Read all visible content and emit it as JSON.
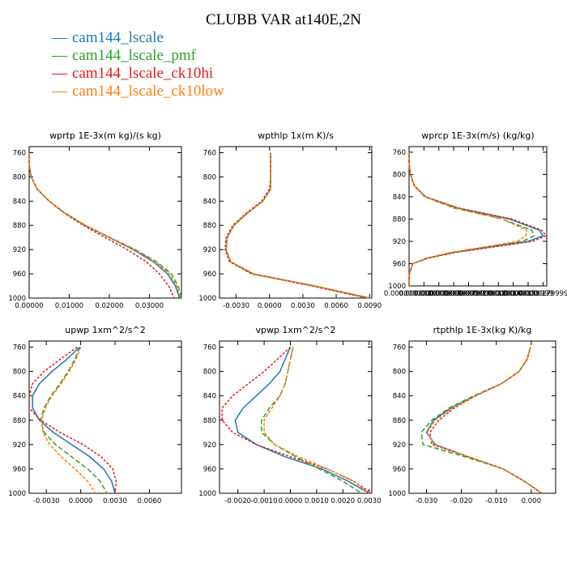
{
  "title": "CLUBB VAR at140E,2N",
  "legend": [
    {
      "label": "cam144_lscale",
      "color": "#1f77b4"
    },
    {
      "label": "cam144_lscale_pmf",
      "color": "#2ca02c"
    },
    {
      "label": "cam144_lscale_ck10hi",
      "color": "#e41a1c"
    },
    {
      "label": "cam144_lscale_ck10low",
      "color": "#ff7f0e"
    }
  ],
  "chart_data": [
    {
      "type": "line",
      "title": "wprtp  1E-3x(m kg)/(s kg)",
      "ylim": [
        1000,
        750
      ],
      "yticks": [
        "760",
        "800",
        "840",
        "880",
        "920",
        "960",
        "1000"
      ],
      "xlim": [
        0,
        0.038
      ],
      "xticks": [
        {
          "v": 0,
          "label": "0.00000"
        },
        {
          "v": 0.01,
          "label": "0.01000"
        },
        {
          "v": 0.02,
          "label": "0.02000"
        },
        {
          "v": 0.03,
          "label": "0.03000"
        }
      ],
      "y": [
        760,
        780,
        800,
        820,
        840,
        860,
        880,
        900,
        920,
        940,
        960,
        980,
        1000
      ],
      "series": [
        {
          "name": "cam144_lscale",
          "values": [
            0.0,
            0.0,
            0.0005,
            0.002,
            0.005,
            0.009,
            0.014,
            0.02,
            0.026,
            0.031,
            0.0345,
            0.0365,
            0.0375
          ]
        },
        {
          "name": "cam144_lscale_pmf",
          "values": [
            0.0,
            0.0,
            0.0005,
            0.002,
            0.005,
            0.009,
            0.014,
            0.0202,
            0.0265,
            0.0318,
            0.0355,
            0.0372,
            0.038
          ]
        },
        {
          "name": "cam144_lscale_ck10hi",
          "values": [
            0.0,
            0.0,
            0.0005,
            0.002,
            0.005,
            0.0088,
            0.0135,
            0.019,
            0.0245,
            0.0292,
            0.0325,
            0.0348,
            0.0362
          ]
        },
        {
          "name": "cam144_lscale_ck10low",
          "values": [
            0.0,
            0.0,
            0.0005,
            0.002,
            0.005,
            0.009,
            0.014,
            0.0201,
            0.0263,
            0.0315,
            0.035,
            0.0368,
            0.0377
          ]
        }
      ]
    },
    {
      "type": "line",
      "title": "wpthlp  1x(m K)/s",
      "ylim": [
        1000,
        750
      ],
      "yticks": [
        "760",
        "800",
        "840",
        "880",
        "920",
        "960",
        "1000"
      ],
      "xlim": [
        -0.0045,
        0.0092
      ],
      "xticks": [
        {
          "v": -0.003,
          "label": "-0.0030"
        },
        {
          "v": 0,
          "label": "0.0000"
        },
        {
          "v": 0.003,
          "label": "0.0030"
        },
        {
          "v": 0.006,
          "label": "0.0060"
        },
        {
          "v": 0.009,
          "label": "0.0090"
        }
      ],
      "y": [
        760,
        780,
        800,
        820,
        840,
        860,
        880,
        900,
        920,
        940,
        960,
        980,
        1000
      ],
      "series": [
        {
          "name": "cam144_lscale",
          "values": [
            0.0001,
            0.0001,
            0.0001,
            0.0001,
            -0.0006,
            -0.002,
            -0.0032,
            -0.0038,
            -0.0039,
            -0.0035,
            -0.0015,
            0.004,
            0.009
          ]
        },
        {
          "name": "cam144_lscale_pmf",
          "values": [
            0.0001,
            0.0001,
            0.0001,
            0.0001,
            -0.0006,
            -0.002,
            -0.0032,
            -0.0038,
            -0.0039,
            -0.0035,
            -0.0015,
            0.004,
            0.009
          ]
        },
        {
          "name": "cam144_lscale_ck10hi",
          "values": [
            0.0001,
            0.0001,
            0.0001,
            0.0,
            -0.0007,
            -0.0021,
            -0.0033,
            -0.0039,
            -0.004,
            -0.0036,
            -0.0016,
            0.0038,
            0.0088
          ]
        },
        {
          "name": "cam144_lscale_ck10low",
          "values": [
            0.0001,
            0.0001,
            0.0001,
            0.0001,
            -0.0006,
            -0.002,
            -0.0032,
            -0.0038,
            -0.0039,
            -0.0035,
            -0.0014,
            0.0041,
            0.0091
          ]
        }
      ]
    },
    {
      "type": "line",
      "title": "wprcp  1E-3x(m/s) (kg/kg)",
      "ylim": [
        1000,
        750
      ],
      "yticks": [
        "760",
        "800",
        "840",
        "880",
        "920",
        "960",
        "1000"
      ],
      "xlim": [
        0,
        1.85e-05
      ],
      "xticks": [
        {
          "v": 0,
          "label": "0.0000000000"
        },
        {
          "v": 2e-06,
          "label": "0.0000020000"
        },
        {
          "v": 4e-06,
          "label": "0.0000039999"
        },
        {
          "v": 6e-06,
          "label": "0.0000059999"
        },
        {
          "v": 8e-06,
          "label": "0.0000079999"
        },
        {
          "v": 1e-05,
          "label": "0.0000100000"
        },
        {
          "v": 1.2e-05,
          "label": "0.0000120000"
        },
        {
          "v": 1.4e-05,
          "label": "0.0000140000"
        },
        {
          "v": 1.6e-05,
          "label": "0.0000159999"
        },
        {
          "v": 1.8e-05,
          "label": "0.0000179999"
        }
      ],
      "y": [
        760,
        780,
        800,
        820,
        840,
        860,
        880,
        900,
        910,
        920,
        930,
        940,
        950,
        960,
        980,
        1000
      ],
      "series": [
        {
          "name": "cam144_lscale",
          "values": [
            0.0,
            0.0,
            0.0002,
            0.0007,
            0.0022,
            0.0065,
            0.0135,
            0.0175,
            0.018,
            0.016,
            0.011,
            0.006,
            0.0025,
            0.0005,
            0.0,
            0.0
          ]
        },
        {
          "name": "cam144_lscale_pmf",
          "values": [
            0.0,
            0.0,
            0.0002,
            0.0007,
            0.0021,
            0.006,
            0.0125,
            0.0165,
            0.0168,
            0.0152,
            0.0105,
            0.0057,
            0.0024,
            0.0005,
            0.0,
            0.0
          ]
        },
        {
          "name": "cam144_lscale_ck10hi",
          "values": [
            0.0,
            0.0,
            0.0002,
            0.0007,
            0.0022,
            0.0066,
            0.0138,
            0.0178,
            0.0184,
            0.0166,
            0.0114,
            0.0062,
            0.0026,
            0.0005,
            0.0,
            0.0
          ]
        },
        {
          "name": "cam144_lscale_ck10low",
          "values": [
            0.0,
            0.0,
            0.0002,
            0.0007,
            0.0021,
            0.0062,
            0.0125,
            0.0158,
            0.0157,
            0.0145,
            0.0102,
            0.0056,
            0.0024,
            0.0005,
            0.0,
            0.0
          ]
        }
      ],
      "value_scale": 0.001
    },
    {
      "type": "line",
      "title": "upwp  1xm^2/s^2",
      "ylim": [
        1000,
        750
      ],
      "yticks": [
        "760",
        "800",
        "840",
        "880",
        "920",
        "960",
        "1000"
      ],
      "xlim": [
        -0.0045,
        0.0088
      ],
      "xticks": [
        {
          "v": -0.003,
          "label": "-0.0030"
        },
        {
          "v": 0,
          "label": "0.0000"
        },
        {
          "v": 0.003,
          "label": "0.0030"
        },
        {
          "v": 0.006,
          "label": "0.0060"
        }
      ],
      "y": [
        760,
        780,
        800,
        820,
        840,
        860,
        880,
        900,
        920,
        940,
        960,
        980,
        1000
      ],
      "series": [
        {
          "name": "cam144_lscale",
          "values": [
            -0.0001,
            -0.0012,
            -0.0025,
            -0.0036,
            -0.0042,
            -0.0042,
            -0.0036,
            -0.0024,
            -0.0008,
            0.0008,
            0.002,
            0.0027,
            0.003
          ]
        },
        {
          "name": "cam144_lscale_pmf",
          "values": [
            -0.0001,
            -0.0005,
            -0.0011,
            -0.0018,
            -0.0026,
            -0.0032,
            -0.0035,
            -0.0032,
            -0.0022,
            -0.0008,
            0.0006,
            0.0017,
            0.0023
          ]
        },
        {
          "name": "cam144_lscale_ck10hi",
          "values": [
            -0.0003,
            -0.0018,
            -0.0032,
            -0.0042,
            -0.0046,
            -0.0045,
            -0.0035,
            -0.0018,
            0.0002,
            0.0018,
            0.0028,
            0.0031,
            0.003
          ]
        },
        {
          "name": "cam144_lscale_ck10low",
          "values": [
            0.0,
            -0.0004,
            -0.001,
            -0.0017,
            -0.0025,
            -0.0031,
            -0.0034,
            -0.0033,
            -0.0027,
            -0.0017,
            -0.0005,
            0.0006,
            0.0013
          ]
        }
      ]
    },
    {
      "type": "line",
      "title": "vpwp  1xm^2/s^2",
      "ylim": [
        1000,
        750
      ],
      "yticks": [
        "760",
        "800",
        "840",
        "880",
        "920",
        "960",
        "1000"
      ],
      "xlim": [
        -0.0027,
        0.0031
      ],
      "xticks": [
        {
          "v": -0.002,
          "label": "-0.0020"
        },
        {
          "v": -0.001,
          "label": "-0.0010"
        },
        {
          "v": 0,
          "label": "0.0000"
        },
        {
          "v": 0.001,
          "label": "0.0010"
        },
        {
          "v": 0.002,
          "label": "0.0020"
        },
        {
          "v": 0.003,
          "label": "0.0030"
        }
      ],
      "y": [
        760,
        780,
        800,
        820,
        840,
        860,
        880,
        900,
        920,
        940,
        960,
        980,
        1000
      ],
      "series": [
        {
          "name": "cam144_lscale",
          "values": [
            0.0,
            -0.0002,
            -0.0004,
            -0.0008,
            -0.0013,
            -0.0018,
            -0.0021,
            -0.002,
            -0.0013,
            -0.0002,
            0.0012,
            0.0022,
            0.003
          ]
        },
        {
          "name": "cam144_lscale_pmf",
          "values": [
            0.0001,
            0.0,
            -0.0001,
            -0.0002,
            -0.0004,
            -0.0008,
            -0.0011,
            -0.0011,
            -0.0006,
            0.0002,
            0.0011,
            0.002,
            0.0027
          ]
        },
        {
          "name": "cam144_lscale_ck10hi",
          "values": [
            0.0,
            -0.0005,
            -0.001,
            -0.0016,
            -0.0022,
            -0.0026,
            -0.0026,
            -0.0022,
            -0.0013,
            0.0,
            0.0014,
            0.0024,
            0.0031
          ]
        },
        {
          "name": "cam144_lscale_ck10low",
          "values": [
            0.0001,
            0.0,
            -0.0001,
            -0.0002,
            -0.0004,
            -0.0007,
            -0.001,
            -0.001,
            -0.0006,
            0.0003,
            0.0014,
            0.0024,
            0.003
          ]
        }
      ]
    },
    {
      "type": "line",
      "title": "rtpthlp  1E-3x(kg K)/kg",
      "ylim": [
        1000,
        750
      ],
      "yticks": [
        "760",
        "800",
        "840",
        "880",
        "920",
        "960",
        "1000"
      ],
      "xlim": [
        -0.035,
        0.007
      ],
      "xticks": [
        {
          "v": -0.03,
          "label": "-0.030"
        },
        {
          "v": -0.02,
          "label": "-0.020"
        },
        {
          "v": -0.01,
          "label": "-0.010"
        },
        {
          "v": 0,
          "label": "0.000"
        }
      ],
      "y": [
        760,
        780,
        800,
        820,
        840,
        860,
        880,
        900,
        920,
        940,
        960,
        980,
        1000
      ],
      "series": [
        {
          "name": "cam144_lscale",
          "values": [
            -0.0002,
            -0.0012,
            -0.0035,
            -0.0085,
            -0.016,
            -0.023,
            -0.028,
            -0.03,
            -0.0275,
            -0.018,
            -0.008,
            -0.002,
            0.003
          ]
        },
        {
          "name": "cam144_lscale_pmf",
          "values": [
            -0.0002,
            -0.0012,
            -0.0035,
            -0.0085,
            -0.0165,
            -0.0235,
            -0.0285,
            -0.0315,
            -0.031,
            -0.019,
            -0.008,
            -0.002,
            0.003
          ]
        },
        {
          "name": "cam144_lscale_ck10hi",
          "values": [
            -0.0002,
            -0.0012,
            -0.0035,
            -0.0085,
            -0.016,
            -0.022,
            -0.0265,
            -0.029,
            -0.0285,
            -0.018,
            -0.008,
            -0.002,
            0.003
          ]
        },
        {
          "name": "cam144_lscale_ck10low",
          "values": [
            -0.0002,
            -0.0012,
            -0.0035,
            -0.0085,
            -0.016,
            -0.0225,
            -0.0275,
            -0.0298,
            -0.0278,
            -0.018,
            -0.008,
            -0.002,
            0.003
          ]
        }
      ]
    }
  ]
}
